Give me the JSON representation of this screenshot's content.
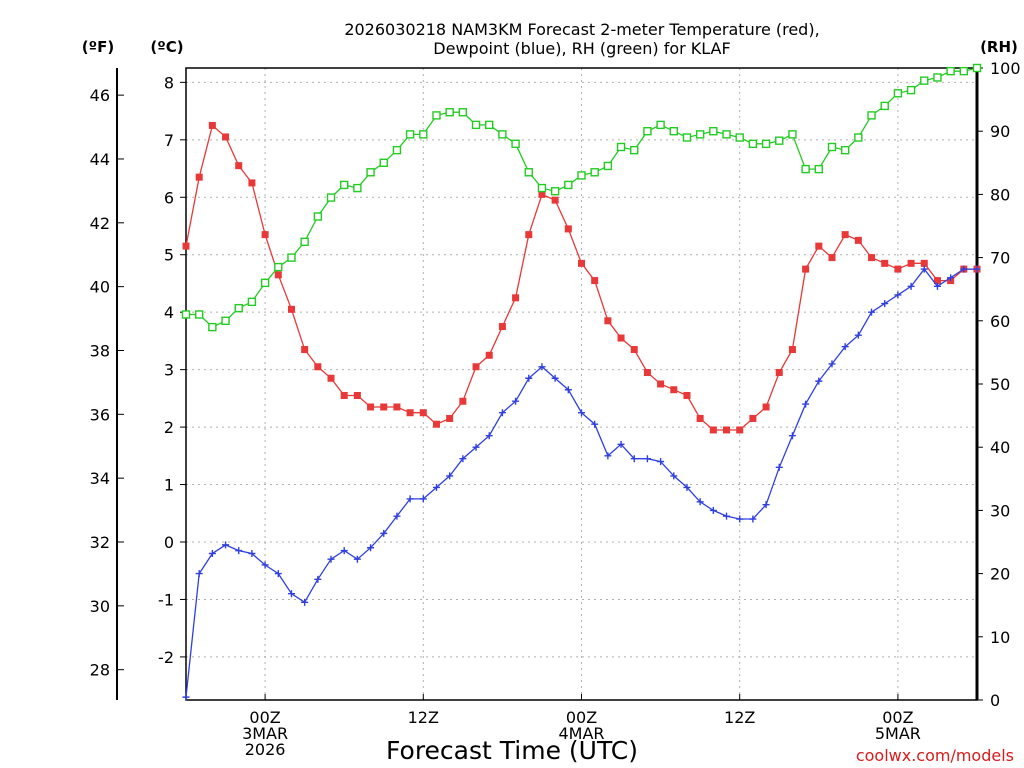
{
  "colors": {
    "temperature": "#e83838",
    "dewpoint": "#2f3fe0",
    "rh": "#22cc22",
    "credit": "#d81b1b"
  },
  "chart_data": {
    "type": "line",
    "title_lines": [
      "2026030218 NAM3KM Forecast 2-meter Temperature (red),",
      "Dewpoint (blue), RH (green) for KLAF"
    ],
    "xlabel": "Forecast Time (UTC)",
    "credit": "coolwx.com/models",
    "x_unit": "forecast hour",
    "x_range": [
      0,
      60
    ],
    "left_c_axis": {
      "unit_label": "(ºC)",
      "range": [
        -2.75,
        8.25
      ],
      "ticks": [
        "-2",
        "-1",
        "0",
        "1",
        "2",
        "3",
        "4",
        "5",
        "6",
        "7",
        "8"
      ]
    },
    "left_f_axis": {
      "unit_label": "(ºF)",
      "range": [
        27.05,
        46.85
      ],
      "ticks": [
        "28",
        "30",
        "32",
        "34",
        "36",
        "38",
        "40",
        "42",
        "44",
        "46"
      ]
    },
    "right_rh_axis": {
      "unit_label": "(RH)",
      "range": [
        0,
        100
      ],
      "ticks": [
        "0",
        "10",
        "20",
        "30",
        "40",
        "50",
        "60",
        "70",
        "80",
        "90",
        "100"
      ]
    },
    "x_ticks": [
      {
        "hour": 6,
        "lines": [
          "00Z",
          "3MAR",
          "2026"
        ]
      },
      {
        "hour": 18,
        "lines": [
          "12Z"
        ]
      },
      {
        "hour": 30,
        "lines": [
          "00Z",
          "4MAR"
        ]
      },
      {
        "hour": 42,
        "lines": [
          "12Z"
        ]
      },
      {
        "hour": 54,
        "lines": [
          "00Z",
          "5MAR"
        ]
      }
    ],
    "series": [
      {
        "name": "2-meter Temperature",
        "unit": "C",
        "axis": "left_c",
        "color_key": "temperature",
        "marker": "filled-square",
        "points": [
          [
            0,
            5.15
          ],
          [
            1,
            6.35
          ],
          [
            2,
            7.25
          ],
          [
            3,
            7.05
          ],
          [
            4,
            6.55
          ],
          [
            5,
            6.25
          ],
          [
            6,
            5.35
          ],
          [
            7,
            4.65
          ],
          [
            8,
            4.05
          ],
          [
            9,
            3.35
          ],
          [
            10,
            3.05
          ],
          [
            11,
            2.85
          ],
          [
            12,
            2.55
          ],
          [
            13,
            2.55
          ],
          [
            14,
            2.35
          ],
          [
            15,
            2.35
          ],
          [
            16,
            2.35
          ],
          [
            17,
            2.25
          ],
          [
            18,
            2.25
          ],
          [
            19,
            2.05
          ],
          [
            20,
            2.15
          ],
          [
            21,
            2.45
          ],
          [
            22,
            3.05
          ],
          [
            23,
            3.25
          ],
          [
            24,
            3.75
          ],
          [
            25,
            4.25
          ],
          [
            26,
            5.35
          ],
          [
            27,
            6.05
          ],
          [
            28,
            5.95
          ],
          [
            29,
            5.45
          ],
          [
            30,
            4.85
          ],
          [
            31,
            4.55
          ],
          [
            32,
            3.85
          ],
          [
            33,
            3.55
          ],
          [
            34,
            3.35
          ],
          [
            35,
            2.95
          ],
          [
            36,
            2.75
          ],
          [
            37,
            2.65
          ],
          [
            38,
            2.55
          ],
          [
            39,
            2.15
          ],
          [
            40,
            1.95
          ],
          [
            41,
            1.95
          ],
          [
            42,
            1.95
          ],
          [
            43,
            2.15
          ],
          [
            44,
            2.35
          ],
          [
            45,
            2.95
          ],
          [
            46,
            3.35
          ],
          [
            47,
            4.75
          ],
          [
            48,
            5.15
          ],
          [
            49,
            4.95
          ],
          [
            50,
            5.35
          ],
          [
            51,
            5.25
          ],
          [
            52,
            4.95
          ],
          [
            53,
            4.85
          ],
          [
            54,
            4.75
          ],
          [
            55,
            4.85
          ],
          [
            56,
            4.85
          ],
          [
            57,
            4.55
          ],
          [
            58,
            4.55
          ],
          [
            59,
            4.75
          ],
          [
            60,
            4.75
          ]
        ]
      },
      {
        "name": "Dewpoint",
        "unit": "C",
        "axis": "left_c",
        "color_key": "dewpoint",
        "marker": "plus",
        "points": [
          [
            0,
            -2.7
          ],
          [
            1,
            -0.55
          ],
          [
            2,
            -0.2
          ],
          [
            3,
            -0.05
          ],
          [
            4,
            -0.15
          ],
          [
            5,
            -0.2
          ],
          [
            6,
            -0.4
          ],
          [
            7,
            -0.55
          ],
          [
            8,
            -0.9
          ],
          [
            9,
            -1.05
          ],
          [
            10,
            -0.65
          ],
          [
            11,
            -0.3
          ],
          [
            12,
            -0.15
          ],
          [
            13,
            -0.3
          ],
          [
            14,
            -0.1
          ],
          [
            15,
            0.15
          ],
          [
            16,
            0.45
          ],
          [
            17,
            0.75
          ],
          [
            18,
            0.75
          ],
          [
            19,
            0.95
          ],
          [
            20,
            1.15
          ],
          [
            21,
            1.45
          ],
          [
            22,
            1.65
          ],
          [
            23,
            1.85
          ],
          [
            24,
            2.25
          ],
          [
            25,
            2.45
          ],
          [
            26,
            2.85
          ],
          [
            27,
            3.05
          ],
          [
            28,
            2.85
          ],
          [
            29,
            2.65
          ],
          [
            30,
            2.25
          ],
          [
            31,
            2.05
          ],
          [
            32,
            1.5
          ],
          [
            33,
            1.7
          ],
          [
            34,
            1.45
          ],
          [
            35,
            1.45
          ],
          [
            36,
            1.4
          ],
          [
            37,
            1.15
          ],
          [
            38,
            0.95
          ],
          [
            39,
            0.7
          ],
          [
            40,
            0.55
          ],
          [
            41,
            0.45
          ],
          [
            42,
            0.4
          ],
          [
            43,
            0.4
          ],
          [
            44,
            0.65
          ],
          [
            45,
            1.3
          ],
          [
            46,
            1.85
          ],
          [
            47,
            2.4
          ],
          [
            48,
            2.8
          ],
          [
            49,
            3.1
          ],
          [
            50,
            3.4
          ],
          [
            51,
            3.6
          ],
          [
            52,
            4.0
          ],
          [
            53,
            4.15
          ],
          [
            54,
            4.3
          ],
          [
            55,
            4.45
          ],
          [
            56,
            4.75
          ],
          [
            57,
            4.45
          ],
          [
            58,
            4.6
          ],
          [
            59,
            4.75
          ],
          [
            60,
            4.75
          ]
        ]
      },
      {
        "name": "RH",
        "unit": "%",
        "axis": "right_rh",
        "color_key": "rh",
        "marker": "open-square",
        "points": [
          [
            0,
            61
          ],
          [
            1,
            61
          ],
          [
            2,
            59
          ],
          [
            3,
            60
          ],
          [
            4,
            62
          ],
          [
            5,
            63
          ],
          [
            6,
            66
          ],
          [
            7,
            68.5
          ],
          [
            8,
            70
          ],
          [
            9,
            72.5
          ],
          [
            10,
            76.5
          ],
          [
            11,
            79.5
          ],
          [
            12,
            81.5
          ],
          [
            13,
            81
          ],
          [
            14,
            83.5
          ],
          [
            15,
            85
          ],
          [
            16,
            87
          ],
          [
            17,
            89.5
          ],
          [
            18,
            89.5
          ],
          [
            19,
            92.5
          ],
          [
            20,
            93
          ],
          [
            21,
            93
          ],
          [
            22,
            91
          ],
          [
            23,
            91
          ],
          [
            24,
            89.5
          ],
          [
            25,
            88
          ],
          [
            26,
            83.5
          ],
          [
            27,
            81
          ],
          [
            28,
            80.5
          ],
          [
            29,
            81.5
          ],
          [
            30,
            83
          ],
          [
            31,
            83.5
          ],
          [
            32,
            84.5
          ],
          [
            33,
            87.5
          ],
          [
            34,
            87
          ],
          [
            35,
            90
          ],
          [
            36,
            91
          ],
          [
            37,
            90
          ],
          [
            38,
            89
          ],
          [
            39,
            89.5
          ],
          [
            40,
            90
          ],
          [
            41,
            89.5
          ],
          [
            42,
            89
          ],
          [
            43,
            88
          ],
          [
            44,
            88
          ],
          [
            45,
            88.5
          ],
          [
            46,
            89.5
          ],
          [
            47,
            84
          ],
          [
            48,
            84
          ],
          [
            49,
            87.5
          ],
          [
            50,
            87
          ],
          [
            51,
            89
          ],
          [
            52,
            92.5
          ],
          [
            53,
            94
          ],
          [
            54,
            96
          ],
          [
            55,
            96.5
          ],
          [
            56,
            98
          ],
          [
            57,
            98.5
          ],
          [
            58,
            99.5
          ],
          [
            59,
            99.5
          ],
          [
            60,
            100
          ]
        ]
      }
    ]
  }
}
